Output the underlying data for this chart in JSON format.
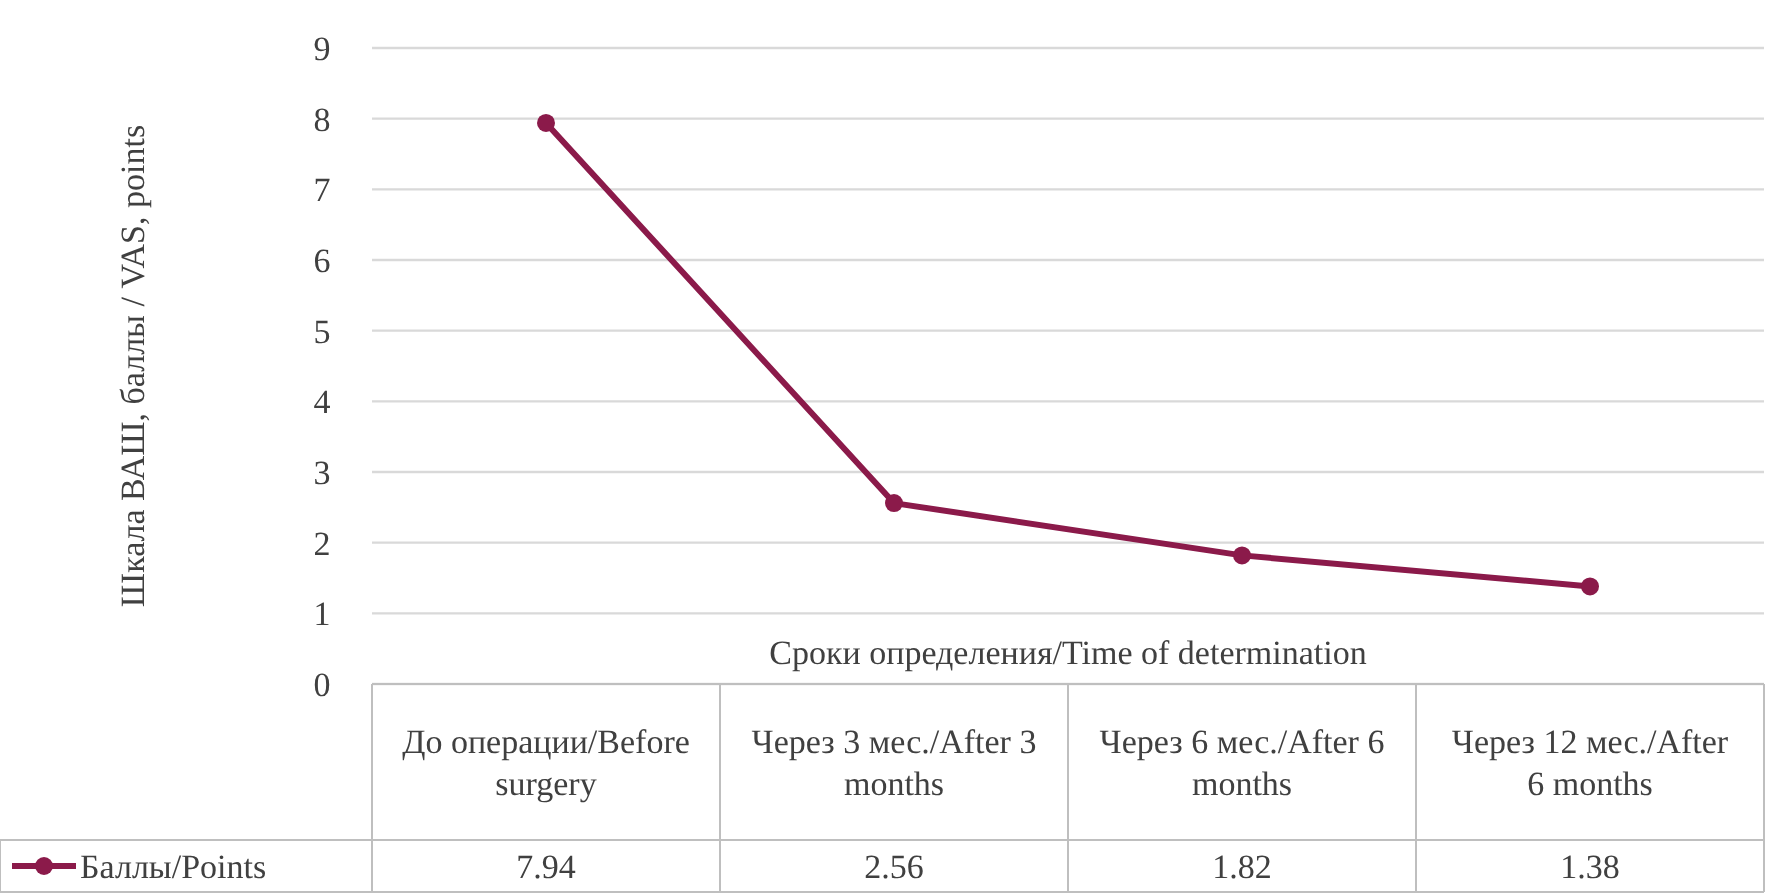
{
  "chart_data": {
    "type": "line",
    "ylabel": "Шкала ВАШ, баллы / VAS, points",
    "xlabel": "Сроки определения/Time of determination",
    "categories": [
      "До операции/Before surgery",
      "Через 3 мес./After 3 months",
      "Через 6 мес./After 6 months",
      "Через 12 мес./After 6 months"
    ],
    "series": [
      {
        "name": "Баллы/Points",
        "color": "#8b1a4a",
        "values": [
          7.94,
          2.56,
          1.82,
          1.38
        ]
      }
    ],
    "ylim": [
      0,
      9
    ],
    "yticks": [
      0,
      1,
      2,
      3,
      4,
      5,
      6,
      7,
      8,
      9
    ],
    "grid": "y",
    "marker": "circle",
    "line_style": "solid",
    "legend": "bottom",
    "data_labels": true
  }
}
